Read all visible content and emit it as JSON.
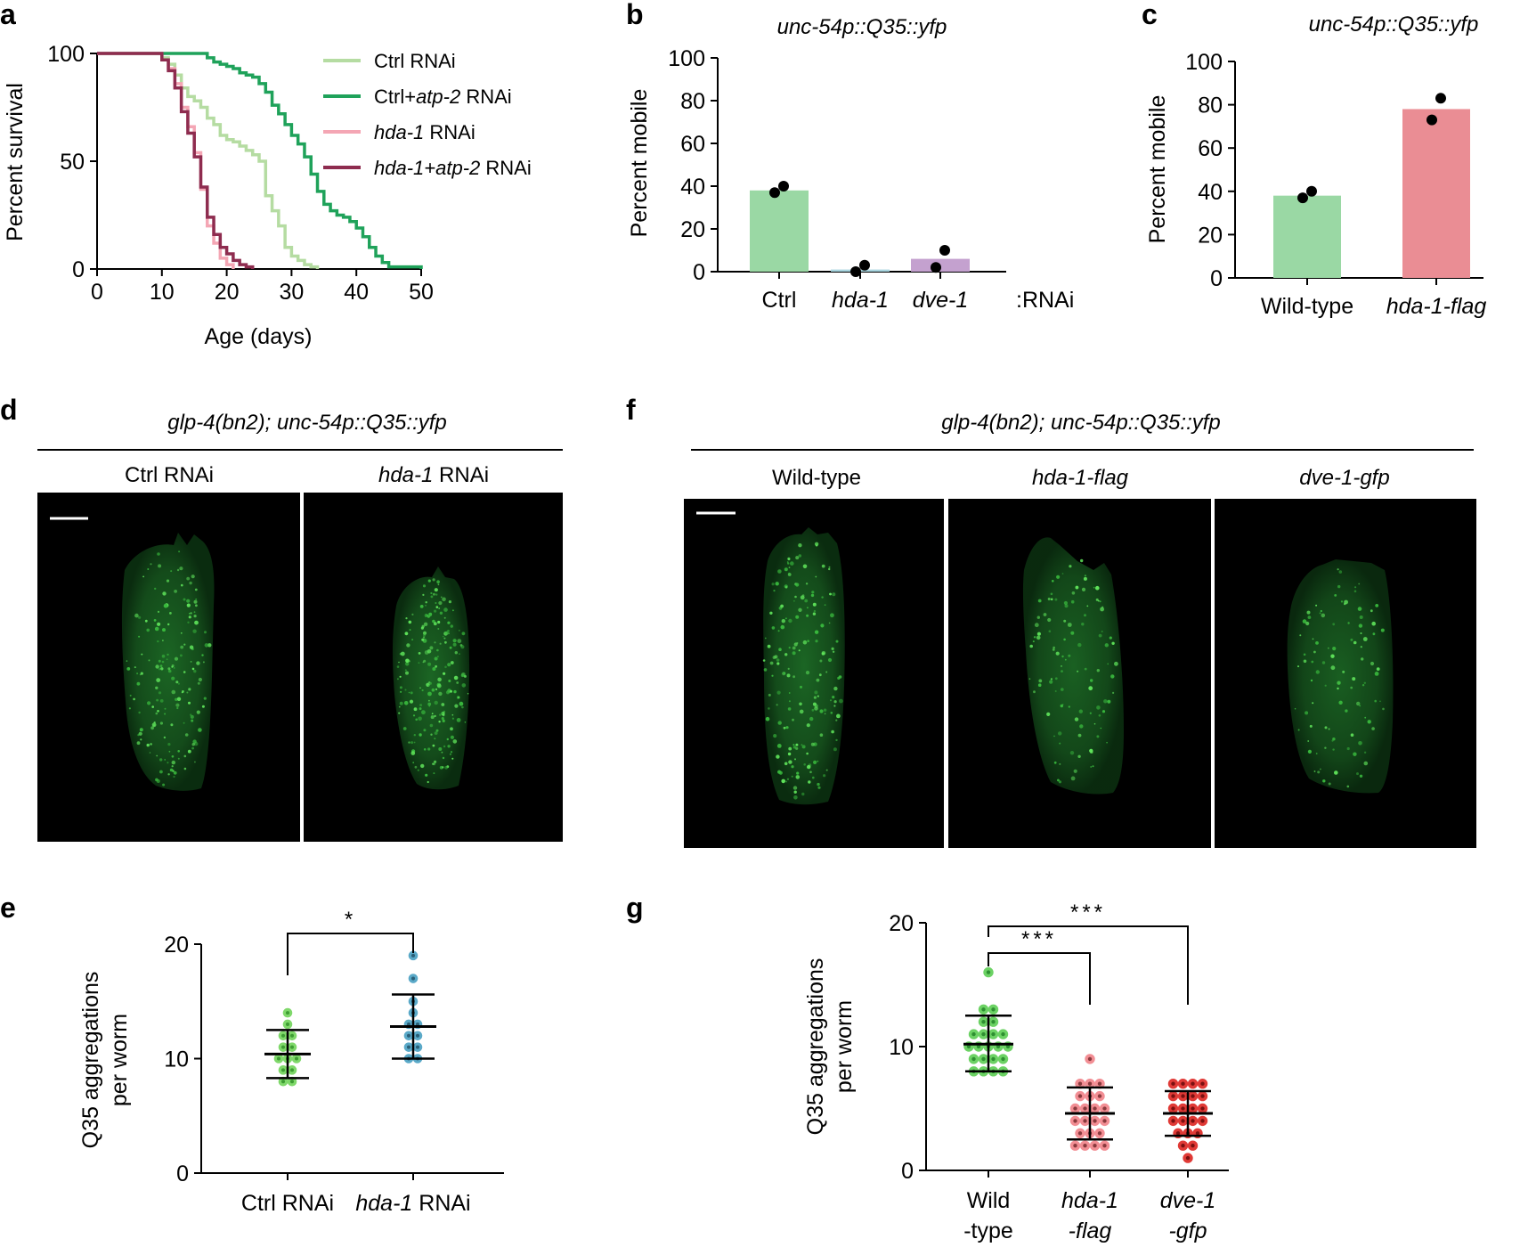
{
  "panel_letters": {
    "a": "a",
    "b": "b",
    "c": "c",
    "d": "d",
    "e": "e",
    "f": "f",
    "g": "g"
  },
  "chart_data": [
    {
      "panel": "a",
      "type": "line",
      "title": "",
      "xlabel": "Age (days)",
      "ylabel": "Percent survival",
      "xlim": [
        0,
        50
      ],
      "ylim": [
        0,
        100
      ],
      "xticks": [
        0,
        10,
        20,
        30,
        40,
        50
      ],
      "yticks": [
        0,
        50,
        100
      ],
      "legend_position": "top-right",
      "series": [
        {
          "name": "Ctrl RNAi",
          "label_pre": "Ctrl RNAi",
          "label_it": "",
          "label_post": "",
          "color": "#b5dca2",
          "x": [
            0,
            9,
            10,
            11,
            12,
            13,
            14,
            15,
            16,
            17,
            18,
            19,
            20,
            21,
            22,
            23,
            24,
            25,
            26,
            27,
            28,
            29,
            30,
            31,
            32,
            33,
            34
          ],
          "y": [
            100,
            100,
            98,
            95,
            90,
            84,
            80,
            78,
            75,
            70,
            67,
            62,
            60,
            59,
            57,
            55,
            53,
            50,
            34,
            27,
            20,
            10,
            6,
            4,
            2,
            1,
            0
          ]
        },
        {
          "name": "Ctrl+atp-2 RNAi",
          "label_pre": "Ctrl+",
          "label_it": "atp-2",
          "label_post": " RNAi",
          "color": "#1fa25a",
          "x": [
            0,
            16,
            17,
            18,
            19,
            20,
            21,
            22,
            23,
            24,
            25,
            26,
            27,
            28,
            29,
            30,
            31,
            32,
            33,
            34,
            35,
            36,
            37,
            38,
            39,
            40,
            41,
            42,
            43,
            44,
            45,
            46,
            47,
            48,
            49,
            50
          ],
          "y": [
            100,
            100,
            98,
            96,
            95,
            94,
            93,
            91,
            90,
            89,
            86,
            82,
            76,
            72,
            67,
            62,
            58,
            52,
            44,
            36,
            30,
            27,
            25,
            24,
            22,
            19,
            15,
            10,
            6,
            3,
            1,
            1,
            1,
            1,
            1,
            0
          ]
        },
        {
          "name": "hda-1 RNAi",
          "label_pre": "",
          "label_it": "hda-1",
          "label_post": " RNAi",
          "color": "#f4a6b4",
          "x": [
            0,
            9,
            10,
            11,
            12,
            13,
            14,
            15,
            16,
            17,
            18,
            19,
            20,
            21
          ],
          "y": [
            100,
            100,
            97,
            93,
            86,
            75,
            66,
            54,
            37,
            20,
            12,
            5,
            2,
            0
          ]
        },
        {
          "name": "hda-1+atp-2 RNAi",
          "label_pre": "",
          "label_it": "hda-1+atp-2",
          "label_post": " RNAi",
          "color": "#8e2c4f",
          "x": [
            0,
            9,
            10,
            11,
            12,
            13,
            14,
            15,
            16,
            17,
            18,
            19,
            20,
            21,
            22,
            23,
            24
          ],
          "y": [
            100,
            100,
            97,
            92,
            84,
            73,
            63,
            52,
            38,
            24,
            16,
            10,
            7,
            4,
            2,
            1,
            0
          ]
        }
      ]
    },
    {
      "panel": "b",
      "type": "bar",
      "title": "unc-54p::Q35::yfp",
      "xlabel": ":RNAi",
      "ylabel": "Percent mobile",
      "ylim": [
        0,
        100
      ],
      "yticks": [
        0,
        20,
        40,
        60,
        80,
        100
      ],
      "categories": [
        "Ctrl",
        "hda-1",
        "dve-1"
      ],
      "category_italic": [
        false,
        true,
        true
      ],
      "values": [
        38,
        1,
        6
      ],
      "colors": [
        "#9ad8a4",
        "#a9d5df",
        "#c4a1cf"
      ],
      "points": [
        [
          37,
          40
        ],
        [
          0,
          3
        ],
        [
          2,
          10
        ]
      ]
    },
    {
      "panel": "c",
      "type": "bar",
      "title": "unc-54p::Q35::yfp",
      "xlabel": "",
      "ylabel": "Percent mobile",
      "ylim": [
        0,
        100
      ],
      "yticks": [
        0,
        20,
        40,
        60,
        80,
        100
      ],
      "categories": [
        "Wild-type",
        "hda-1-flag"
      ],
      "category_italic": [
        false,
        true
      ],
      "values": [
        38,
        78
      ],
      "colors": [
        "#9ad8a4",
        "#ea8d94"
      ],
      "points": [
        [
          37,
          40
        ],
        [
          73,
          83
        ]
      ]
    },
    {
      "panel": "e",
      "type": "scatter",
      "title": "",
      "xlabel": "",
      "ylabel_line1": "Q35 aggregations",
      "ylabel_line2": "per worm",
      "ylim": [
        0,
        20
      ],
      "yticks": [
        0,
        10,
        20
      ],
      "significance": [
        {
          "from": 0,
          "to": 1,
          "label": "*"
        }
      ],
      "groups": [
        {
          "name": "Ctrl RNAi",
          "label_pre": "Ctrl RNAi",
          "label_it": "",
          "fill": "#3e9d33",
          "edge": "#7fd86a",
          "mean": 10.4,
          "sd_low": 8.3,
          "sd_high": 12.5,
          "values": [
            14,
            13,
            12,
            12,
            11,
            11,
            10,
            10,
            10,
            9,
            9,
            8,
            8
          ]
        },
        {
          "name": "hda-1 RNAi",
          "label_pre": "",
          "label_it": "hda-1",
          "label_post": " RNAi",
          "fill": "#2a5f77",
          "edge": "#5aa9c8",
          "mean": 12.8,
          "sd_low": 10.0,
          "sd_high": 15.6,
          "values": [
            19,
            17,
            15,
            14,
            13,
            13,
            12,
            12,
            11,
            11,
            10,
            10
          ]
        }
      ]
    },
    {
      "panel": "g",
      "type": "scatter",
      "title": "",
      "xlabel": "",
      "ylabel_line1": "Q35 aggregations",
      "ylabel_line2": "per worm",
      "ylim": [
        0,
        20
      ],
      "yticks": [
        0,
        10,
        20
      ],
      "significance": [
        {
          "from": 0,
          "to": 1,
          "label": "***"
        },
        {
          "from": 0,
          "to": 2,
          "label": "***"
        }
      ],
      "groups": [
        {
          "name": "Wild-type",
          "line1": "Wild",
          "line2": "-type",
          "italic": false,
          "fill": "#2e8f31",
          "edge": "#6cd264",
          "mean": 10.2,
          "sd_low": 8.0,
          "sd_high": 12.5,
          "values": [
            16,
            13,
            13,
            12,
            12,
            11,
            11,
            11,
            11,
            10,
            10,
            10,
            10,
            10,
            9,
            9,
            9,
            9,
            8,
            8,
            8,
            8
          ]
        },
        {
          "name": "hda-1-flag",
          "line1": "hda-1",
          "line2": "-flag",
          "italic": true,
          "fill": "#8a3a3e",
          "edge": "#f28e94",
          "mean": 4.6,
          "sd_low": 2.5,
          "sd_high": 6.7,
          "values": [
            9,
            7,
            7,
            7,
            6,
            6,
            6,
            5,
            5,
            5,
            5,
            4,
            4,
            4,
            4,
            3,
            3,
            3,
            2,
            2,
            2,
            2
          ]
        },
        {
          "name": "dve-1-gfp",
          "line1": "dve-1",
          "line2": "-gfp",
          "italic": true,
          "fill": "#7a1010",
          "edge": "#e03a36",
          "mean": 4.6,
          "sd_low": 2.8,
          "sd_high": 6.4,
          "values": [
            7,
            7,
            7,
            7,
            6,
            6,
            6,
            6,
            5,
            5,
            5,
            5,
            4,
            4,
            4,
            4,
            3,
            3,
            3,
            2,
            2,
            1
          ]
        }
      ]
    }
  ],
  "micrographs": {
    "d": {
      "strain": "glp-4(bn2); unc-54p::Q35::yfp",
      "columns": [
        {
          "pre": "Ctrl RNAi",
          "it": "",
          "post": ""
        },
        {
          "pre": "",
          "it": "hda-1",
          "post": " RNAi"
        }
      ]
    },
    "f": {
      "strain": "glp-4(bn2); unc-54p::Q35::yfp",
      "columns": [
        {
          "pre": "Wild-type",
          "it": "",
          "post": ""
        },
        {
          "pre": "",
          "it": "hda-1-flag",
          "post": ""
        },
        {
          "pre": "",
          "it": "dve-1-gfp",
          "post": ""
        }
      ]
    }
  }
}
